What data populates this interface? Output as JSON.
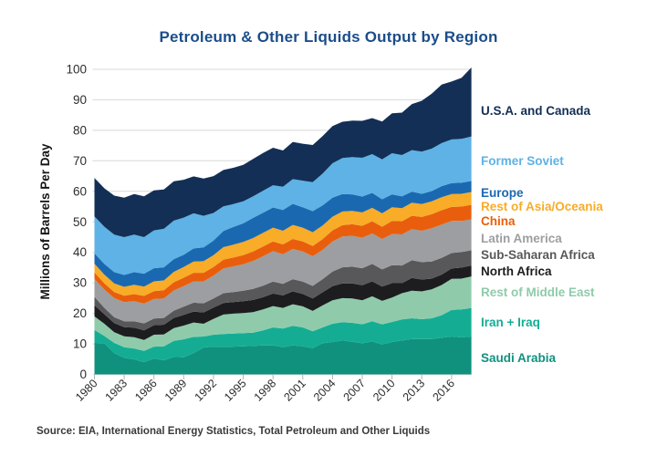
{
  "title": "Petroleum & Other Liquids Output by Region",
  "source_note": "Source: EIA, International Energy Statistics, Total Petroleum and Other Liquids",
  "colors": {
    "title_text": "#1B4D8A",
    "axis_text": "#2D2D2D",
    "gridline": "#D8D8D8",
    "source_text": "#3A3A3A",
    "background": "#FFFFFF"
  },
  "chart_data": {
    "type": "area",
    "stacked": true,
    "title": "Petroleum & Other Liquids Output by Region",
    "xlabel": "",
    "ylabel": "Millions of Barrels Per Day",
    "units": "million barrels per day",
    "ylim": [
      0,
      100
    ],
    "ytick_step": 10,
    "grid": true,
    "legend_position": "right",
    "x": [
      1980,
      1981,
      1982,
      1983,
      1984,
      1985,
      1986,
      1987,
      1988,
      1989,
      1990,
      1991,
      1992,
      1993,
      1994,
      1995,
      1996,
      1997,
      1998,
      1999,
      2000,
      2001,
      2002,
      2003,
      2004,
      2005,
      2006,
      2007,
      2008,
      2009,
      2010,
      2011,
      2012,
      2013,
      2014,
      2015,
      2016,
      2017,
      2018
    ],
    "xticks": [
      1980,
      1983,
      1986,
      1989,
      1992,
      1995,
      1998,
      2001,
      2004,
      2007,
      2010,
      2013,
      2016
    ],
    "series": [
      {
        "name": "Saudi Arabia",
        "color": "#10917E",
        "values": [
          10.3,
          10.2,
          7.0,
          5.4,
          4.9,
          4.0,
          5.2,
          4.6,
          5.7,
          5.6,
          7.0,
          8.8,
          9.1,
          9.0,
          9.1,
          9.2,
          9.3,
          9.5,
          9.5,
          8.9,
          9.5,
          9.2,
          8.6,
          10.2,
          10.6,
          11.1,
          10.7,
          10.2,
          10.8,
          9.8,
          10.6,
          11.1,
          11.6,
          11.6,
          11.6,
          12.0,
          12.4,
          12.1,
          12.4
        ]
      },
      {
        "name": "Iran + Iraq",
        "color": "#14AD94",
        "values": [
          4.3,
          2.4,
          3.3,
          3.5,
          3.6,
          3.7,
          3.9,
          4.6,
          5.3,
          5.9,
          5.3,
          3.6,
          3.9,
          4.2,
          4.3,
          4.3,
          4.4,
          4.9,
          5.9,
          6.1,
          6.4,
          6.2,
          5.5,
          5.2,
          6.0,
          6.0,
          6.2,
          6.2,
          6.6,
          6.6,
          6.6,
          6.9,
          6.8,
          6.5,
          6.8,
          7.4,
          8.7,
          9.2,
          9.4
        ]
      },
      {
        "name": "Rest of Middle East",
        "color": "#8FCBAA",
        "values": [
          4.4,
          4.0,
          3.5,
          3.6,
          3.7,
          3.6,
          3.9,
          3.9,
          4.2,
          4.5,
          4.7,
          4.2,
          5.2,
          6.4,
          6.5,
          6.6,
          6.7,
          6.9,
          7.0,
          6.8,
          7.1,
          6.9,
          6.7,
          7.2,
          7.7,
          7.9,
          8.0,
          7.9,
          8.2,
          7.7,
          8.0,
          8.6,
          9.0,
          9.1,
          9.5,
          9.9,
          10.2,
          10.1,
          10.3
        ]
      },
      {
        "name": "North Africa",
        "color": "#1D1D1F",
        "values": [
          3.7,
          3.1,
          3.0,
          3.0,
          3.1,
          3.1,
          3.1,
          3.2,
          3.3,
          3.5,
          3.6,
          3.7,
          3.7,
          3.8,
          3.8,
          3.9,
          4.0,
          4.0,
          4.1,
          4.1,
          4.2,
          4.1,
          4.1,
          4.3,
          4.6,
          4.8,
          4.9,
          4.9,
          4.9,
          4.7,
          4.7,
          3.3,
          4.2,
          3.9,
          3.5,
          3.4,
          3.4,
          3.6,
          3.6
        ]
      },
      {
        "name": "Sub-Saharan Africa",
        "color": "#58585A",
        "values": [
          2.7,
          2.1,
          1.9,
          1.9,
          2.1,
          2.3,
          2.2,
          2.2,
          2.4,
          2.7,
          2.9,
          3.0,
          3.0,
          3.2,
          3.3,
          3.4,
          3.6,
          3.8,
          3.9,
          3.8,
          4.0,
          4.0,
          4.1,
          4.3,
          4.8,
          5.3,
          5.5,
          5.6,
          5.7,
          5.6,
          5.9,
          5.8,
          5.8,
          5.7,
          5.6,
          5.5,
          5.1,
          5.1,
          5.0
        ]
      },
      {
        "name": "Latin America",
        "color": "#9C9EA1",
        "values": [
          5.9,
          6.0,
          6.3,
          6.3,
          6.6,
          6.5,
          6.4,
          6.4,
          6.6,
          6.7,
          7.0,
          7.2,
          7.5,
          8.1,
          8.4,
          8.7,
          9.2,
          9.6,
          10.0,
          9.7,
          9.9,
          9.9,
          9.7,
          9.6,
          9.9,
          10.1,
          10.1,
          10.0,
          10.0,
          10.0,
          10.2,
          10.2,
          10.2,
          10.3,
          10.9,
          10.9,
          10.5,
          10.2,
          10.1
        ]
      },
      {
        "name": "China",
        "color": "#E95E0C",
        "values": [
          2.1,
          2.0,
          2.0,
          2.1,
          2.3,
          2.5,
          2.6,
          2.7,
          2.7,
          2.8,
          2.8,
          2.8,
          2.8,
          2.9,
          2.9,
          3.0,
          3.1,
          3.2,
          3.2,
          3.2,
          3.3,
          3.3,
          3.4,
          3.5,
          3.6,
          3.7,
          3.8,
          3.9,
          4.0,
          4.0,
          4.3,
          4.3,
          4.4,
          4.5,
          4.6,
          4.7,
          4.6,
          4.7,
          4.8
        ]
      },
      {
        "name": "Rest of Asia/Oceania",
        "color": "#F8AC27",
        "values": [
          2.9,
          2.9,
          2.8,
          2.9,
          3.1,
          3.1,
          3.2,
          3.2,
          3.4,
          3.5,
          3.7,
          3.8,
          3.9,
          4.1,
          4.2,
          4.3,
          4.4,
          4.5,
          4.5,
          4.5,
          4.6,
          4.5,
          4.5,
          4.5,
          4.5,
          4.5,
          4.4,
          4.4,
          4.4,
          4.4,
          4.5,
          4.3,
          4.3,
          4.2,
          4.2,
          4.3,
          4.2,
          4.2,
          4.2
        ]
      },
      {
        "name": "Europe",
        "color": "#1A69B0",
        "values": [
          3.4,
          3.5,
          3.7,
          3.9,
          4.1,
          4.2,
          4.3,
          4.3,
          4.2,
          4.0,
          4.3,
          4.5,
          4.8,
          5.3,
          5.8,
          6.1,
          6.6,
          6.6,
          6.6,
          6.8,
          6.9,
          6.7,
          6.9,
          6.6,
          6.2,
          5.7,
          5.4,
          5.2,
          4.9,
          4.6,
          4.2,
          3.9,
          3.6,
          3.4,
          3.4,
          3.6,
          3.6,
          3.6,
          3.6
        ]
      },
      {
        "name": "Former Soviet",
        "color": "#5EB2E5",
        "values": [
          12.1,
          12.2,
          12.3,
          12.4,
          12.3,
          12.0,
          12.4,
          12.6,
          12.6,
          12.2,
          11.5,
          10.4,
          9.0,
          8.1,
          7.5,
          7.2,
          7.1,
          7.2,
          7.3,
          7.6,
          8.1,
          8.7,
          9.5,
          10.4,
          11.3,
          11.8,
          12.2,
          12.7,
          12.7,
          13.1,
          13.5,
          13.5,
          13.6,
          13.8,
          13.9,
          14.1,
          14.3,
          14.4,
          14.6
        ]
      },
      {
        "name": "U.S.A. and Canada",
        "color": "#132F55",
        "values": [
          12.6,
          12.6,
          12.8,
          12.9,
          13.3,
          13.4,
          13.1,
          12.9,
          12.9,
          12.4,
          12.1,
          12.2,
          12.1,
          11.9,
          11.9,
          12.0,
          12.2,
          12.4,
          12.3,
          11.9,
          12.2,
          12.1,
          12.2,
          12.3,
          12.2,
          11.9,
          12.0,
          12.1,
          11.8,
          12.4,
          13.1,
          13.9,
          15.1,
          16.7,
          18.0,
          19.2,
          19.0,
          20.0,
          22.6
        ]
      }
    ]
  }
}
